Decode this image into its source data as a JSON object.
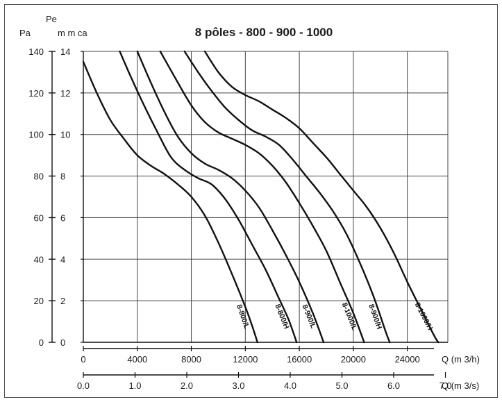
{
  "chart_data": {
    "type": "line",
    "title": "8 pôles - 800 - 900 - 1000",
    "y_axis_pa": {
      "label": "Pa",
      "ticks": [
        "0",
        "20",
        "40",
        "60",
        "80",
        "100",
        "120",
        "140"
      ],
      "range": [
        0,
        140
      ]
    },
    "y_axis_mmca": {
      "label_top": "Pe",
      "label": "m m ca",
      "ticks": [
        "0",
        "2",
        "4",
        "6",
        "8",
        "10",
        "12",
        "14"
      ],
      "range": [
        0,
        14
      ]
    },
    "x_axis_m3h": {
      "label": "Q  (m 3/h)",
      "ticks": [
        "0",
        "4000",
        "8000",
        "12000",
        "16000",
        "20000",
        "24000"
      ],
      "range": [
        0,
        27000
      ]
    },
    "x_axis_m3s": {
      "label": "Q  (m 3/s)",
      "ticks": [
        "0.0",
        "1.0",
        "2.0",
        "3.0",
        "4.0",
        "5.0",
        "6.0",
        "7.0"
      ],
      "range": [
        0,
        7.5
      ]
    },
    "grid": true,
    "series": [
      {
        "name": "8-800/L",
        "points": [
          [
            0,
            135
          ],
          [
            1000,
            120
          ],
          [
            2000,
            107
          ],
          [
            3000,
            98
          ],
          [
            4000,
            90
          ],
          [
            5000,
            85
          ],
          [
            6000,
            81
          ],
          [
            7000,
            76
          ],
          [
            8000,
            70
          ],
          [
            9000,
            61
          ],
          [
            10000,
            48
          ],
          [
            11000,
            33
          ],
          [
            12000,
            17
          ],
          [
            12500,
            8
          ],
          [
            12900,
            0
          ]
        ]
      },
      {
        "name": "8-800/H",
        "points": [
          [
            2700,
            140
          ],
          [
            3500,
            128
          ],
          [
            4500,
            114
          ],
          [
            5500,
            101
          ],
          [
            6500,
            89
          ],
          [
            7500,
            83
          ],
          [
            8500,
            79
          ],
          [
            9500,
            76
          ],
          [
            10500,
            69
          ],
          [
            11500,
            59
          ],
          [
            12500,
            47
          ],
          [
            13500,
            35
          ],
          [
            14500,
            21
          ],
          [
            15200,
            11
          ],
          [
            15800,
            0
          ]
        ]
      },
      {
        "name": "8-900/L",
        "points": [
          [
            4000,
            140
          ],
          [
            5000,
            125
          ],
          [
            6000,
            111
          ],
          [
            7000,
            99
          ],
          [
            8000,
            91
          ],
          [
            9000,
            86
          ],
          [
            10000,
            83
          ],
          [
            11000,
            79
          ],
          [
            12000,
            73
          ],
          [
            13000,
            65
          ],
          [
            14000,
            54
          ],
          [
            15000,
            42
          ],
          [
            16000,
            29
          ],
          [
            17000,
            14
          ],
          [
            17800,
            0
          ]
        ]
      },
      {
        "name": "8-1000/L",
        "points": [
          [
            5700,
            140
          ],
          [
            7000,
            125
          ],
          [
            8000,
            114
          ],
          [
            9000,
            106
          ],
          [
            10000,
            101
          ],
          [
            11000,
            98
          ],
          [
            12000,
            95
          ],
          [
            13000,
            91
          ],
          [
            14000,
            85
          ],
          [
            15000,
            77
          ],
          [
            16000,
            67
          ],
          [
            17000,
            56
          ],
          [
            18000,
            44
          ],
          [
            19000,
            29
          ],
          [
            20000,
            14
          ],
          [
            20800,
            0
          ]
        ]
      },
      {
        "name": "8-900/H",
        "points": [
          [
            7500,
            140
          ],
          [
            8500,
            130
          ],
          [
            9500,
            121
          ],
          [
            10500,
            113
          ],
          [
            11500,
            107
          ],
          [
            12500,
            102
          ],
          [
            13500,
            99
          ],
          [
            14500,
            95
          ],
          [
            15500,
            88
          ],
          [
            16500,
            80
          ],
          [
            17500,
            72
          ],
          [
            18500,
            63
          ],
          [
            19500,
            52
          ],
          [
            20500,
            38
          ],
          [
            21500,
            22
          ],
          [
            22400,
            5
          ],
          [
            22700,
            0
          ]
        ]
      },
      {
        "name": "8-1000/H",
        "points": [
          [
            9000,
            140
          ],
          [
            10000,
            130
          ],
          [
            11000,
            123
          ],
          [
            12000,
            119
          ],
          [
            13000,
            116
          ],
          [
            14000,
            112
          ],
          [
            15000,
            108
          ],
          [
            16000,
            103
          ],
          [
            17000,
            96
          ],
          [
            18000,
            89
          ],
          [
            19000,
            81
          ],
          [
            20000,
            73
          ],
          [
            21000,
            65
          ],
          [
            22000,
            55
          ],
          [
            23000,
            43
          ],
          [
            24000,
            29
          ],
          [
            25000,
            16
          ],
          [
            26000,
            3
          ],
          [
            26300,
            0
          ]
        ]
      }
    ]
  }
}
